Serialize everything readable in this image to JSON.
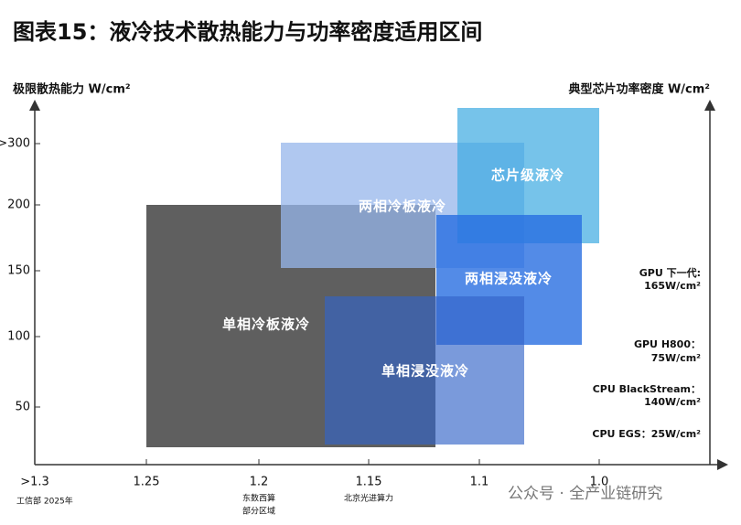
{
  "header": {
    "title": "图表15：液冷技术散热能力与功率密度适用区间"
  },
  "axes": {
    "left_label": "极限散热能力 W/cm²",
    "right_label": "典型芯片功率密度 W/cm²",
    "y_ticks": [
      ">300",
      "200",
      "150",
      "100",
      "50"
    ],
    "x_ticks": [
      ">1.3",
      "1.25",
      "1.2",
      "1.15",
      "1.1",
      "1.0"
    ],
    "x_notes": {
      "p12": [
        "东数西算",
        "部分区域"
      ],
      "p115": [
        "北京光进算力"
      ]
    }
  },
  "regions": [
    "单相冷板液冷",
    "两相冷板液冷",
    "芯片级液冷",
    "两相浸没液冷",
    "单相浸没液冷"
  ],
  "chips": [
    [
      "GPU 下一代:",
      "165W/cm²"
    ],
    [
      "GPU H800：",
      "75W/cm²"
    ],
    [
      "CPU BlackStream：",
      "140W/cm²"
    ],
    [
      "CPU EGS：25W/cm²"
    ]
  ],
  "footer": {
    "source": "工信部 2025年",
    "watermark": "公众号 · 全产业链研究"
  }
}
